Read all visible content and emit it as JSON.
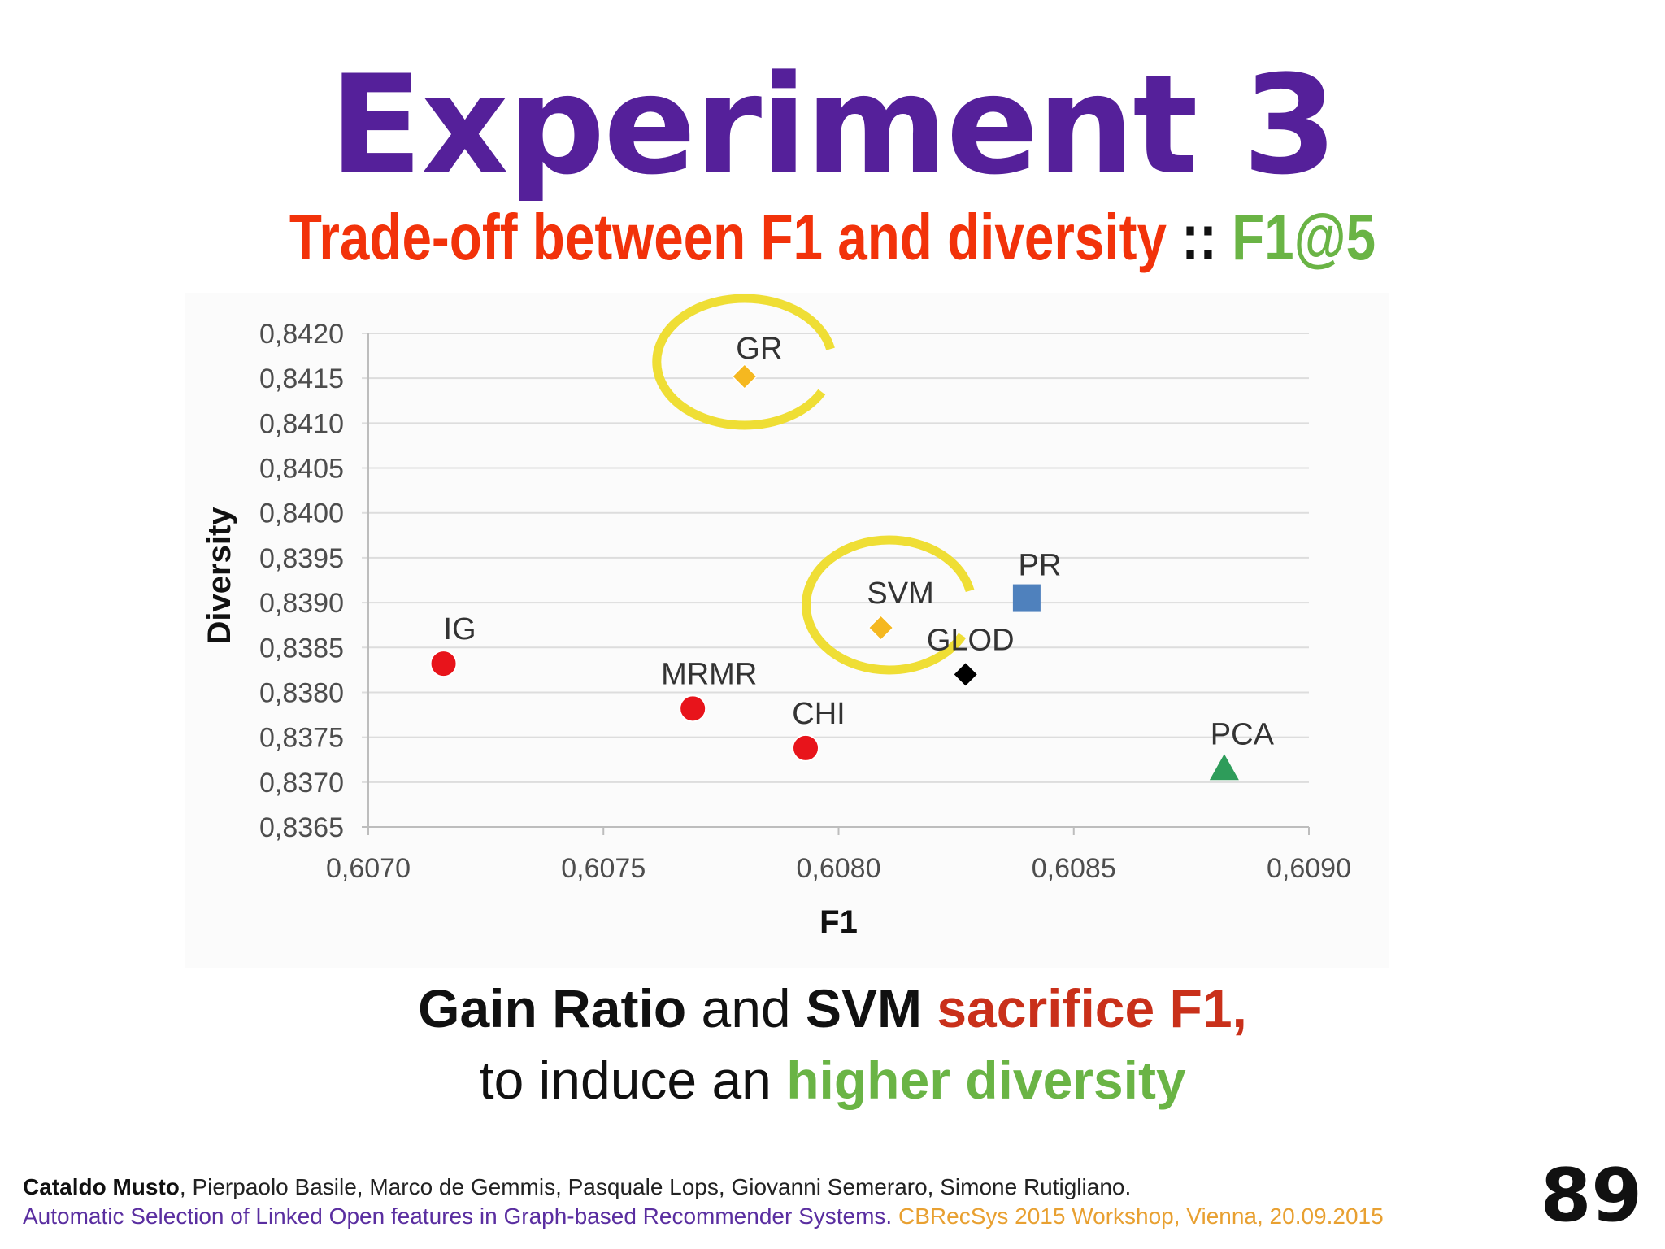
{
  "slide": {
    "title": "Experiment 3",
    "subtitle_red": "Trade-off between F1 and diversity",
    "subtitle_sep": " :: ",
    "subtitle_green": "F1@5",
    "caption": {
      "line1_bold1": "Gain Ratio",
      "line1_mid": " and ",
      "line1_bold2": "SVM",
      "line1_red": " sacrifice F1,",
      "line2_plain": "to induce an ",
      "line2_green": "higher diversity"
    },
    "footer": {
      "lead_author": "Cataldo Musto",
      "coauthors": ", Pierpaolo Basile, Marco de Gemmis, Pasquale Lops, Giovanni Semeraro, Simone Rutigliano.",
      "paper_title": "Automatic Selection of Linked Open features in Graph-based Recommender Systems.",
      "venue": " CBRecSys 2015 Workshop, Vienna, 20.09.2015"
    },
    "page_number": "89"
  },
  "chart_data": {
    "type": "scatter",
    "xlabel": "F1",
    "ylabel": "Diversity",
    "xlim": [
      0.607,
      0.609
    ],
    "ylim": [
      0.8365,
      0.842
    ],
    "x_ticks": [
      "0,6070",
      "0,6075",
      "0,6080",
      "0,6085",
      "0,6090"
    ],
    "y_ticks": [
      "0,8420",
      "0,8415",
      "0,8410",
      "0,8405",
      "0,8400",
      "0,8395",
      "0,8390",
      "0,8385",
      "0,8380",
      "0,8375",
      "0,8370",
      "0,8365"
    ],
    "grid": "horizontal",
    "points": [
      {
        "label": "IG",
        "x": 0.60716,
        "y": 0.83832,
        "marker": "circle",
        "color": "#e8141b"
      },
      {
        "label": "MRMR",
        "x": 0.60769,
        "y": 0.83782,
        "marker": "circle",
        "color": "#e8141b"
      },
      {
        "label": "CHI",
        "x": 0.60793,
        "y": 0.83738,
        "marker": "circle",
        "color": "#e8141b"
      },
      {
        "label": "GR",
        "x": 0.6078,
        "y": 0.84152,
        "marker": "diamond",
        "color": "#f5b820",
        "highlighted": true
      },
      {
        "label": "SVM",
        "x": 0.60809,
        "y": 0.83872,
        "marker": "diamond",
        "color": "#f5b820",
        "highlighted": true
      },
      {
        "label": "GLOD",
        "x": 0.60827,
        "y": 0.8382,
        "marker": "diamond",
        "color": "#000000"
      },
      {
        "label": "PR",
        "x": 0.6084,
        "y": 0.83905,
        "marker": "square",
        "color": "#4f81bd"
      },
      {
        "label": "PCA",
        "x": 0.60882,
        "y": 0.83715,
        "marker": "triangle",
        "color": "#2e9c5a"
      }
    ],
    "highlight_color": "#eedc2a"
  }
}
